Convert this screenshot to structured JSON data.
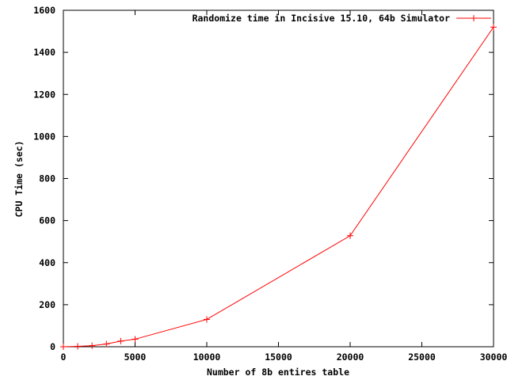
{
  "chart_data": {
    "type": "line",
    "xlabel": "Number of 8b entires table",
    "ylabel": "CPU Time (sec)",
    "xlim": [
      0,
      30000
    ],
    "ylim": [
      0,
      1600
    ],
    "xticks": [
      0,
      5000,
      10000,
      15000,
      20000,
      25000,
      30000
    ],
    "yticks": [
      0,
      200,
      400,
      600,
      800,
      1000,
      1200,
      1400,
      1600
    ],
    "xtick_labels": [
      "0",
      "5000",
      "10000",
      "15000",
      "20000",
      "25000",
      "30000"
    ],
    "ytick_labels": [
      "0",
      "200",
      "400",
      "600",
      "800",
      "1000",
      "1200",
      "1400",
      "1600"
    ],
    "grid": false,
    "legend_position": "top-right",
    "series": [
      {
        "name": "Randomize time in Incisive 15.10, 64b Simulator",
        "color": "#ff0000",
        "marker": "plus",
        "x": [
          0,
          1000,
          2000,
          3000,
          4000,
          5000,
          10000,
          20000,
          30000
        ],
        "y": [
          0,
          2,
          5,
          13,
          27,
          36,
          130,
          528,
          1520
        ]
      }
    ]
  }
}
